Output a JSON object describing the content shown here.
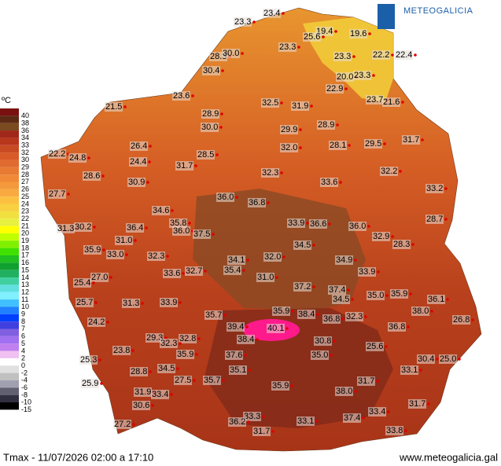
{
  "header": {
    "logo": "METEOGALICIA"
  },
  "legend": {
    "unit": "ºC",
    "items": [
      {
        "label": "40",
        "color": "#7a1010"
      },
      {
        "label": "38",
        "color": "#5c2a14"
      },
      {
        "label": "36",
        "color": "#7a4a20"
      },
      {
        "label": "34",
        "color": "#a0281a"
      },
      {
        "label": "33",
        "color": "#b8361c"
      },
      {
        "label": "32",
        "color": "#c84a22"
      },
      {
        "label": "30",
        "color": "#d85a28"
      },
      {
        "label": "29",
        "color": "#e06a30"
      },
      {
        "label": "28",
        "color": "#e87a34"
      },
      {
        "label": "27",
        "color": "#f08a38"
      },
      {
        "label": "26",
        "color": "#f49a3c"
      },
      {
        "label": "25",
        "color": "#f8aa40"
      },
      {
        "label": "24",
        "color": "#fcc040"
      },
      {
        "label": "23",
        "color": "#f8d040"
      },
      {
        "label": "22",
        "color": "#f0e040"
      },
      {
        "label": "21",
        "color": "#e8f040"
      },
      {
        "label": "20",
        "color": "#ffff00"
      },
      {
        "label": "19",
        "color": "#c0ff00"
      },
      {
        "label": "18",
        "color": "#80f000"
      },
      {
        "label": "17",
        "color": "#40e000"
      },
      {
        "label": "16",
        "color": "#20c020"
      },
      {
        "label": "15",
        "color": "#10a030"
      },
      {
        "label": "14",
        "color": "#20b060"
      },
      {
        "label": "13",
        "color": "#40d0a0"
      },
      {
        "label": "12",
        "color": "#60e0e0"
      },
      {
        "label": "11",
        "color": "#80f0ff"
      },
      {
        "label": "10",
        "color": "#40c0ff"
      },
      {
        "label": "9",
        "color": "#2080ff"
      },
      {
        "label": "8",
        "color": "#0040ff"
      },
      {
        "label": "7",
        "color": "#4040e0"
      },
      {
        "label": "6",
        "color": "#8060e0"
      },
      {
        "label": "5",
        "color": "#a070f0"
      },
      {
        "label": "4",
        "color": "#c080f0"
      },
      {
        "label": "2",
        "color": "#f0c0f0"
      },
      {
        "label": "0",
        "color": "#ffffff"
      },
      {
        "label": "-2",
        "color": "#e0e0e0"
      },
      {
        "label": "-4",
        "color": "#c0c0c0"
      },
      {
        "label": "-6",
        "color": "#a0a0b0"
      },
      {
        "label": "-8",
        "color": "#606070"
      },
      {
        "label": "-10",
        "color": "#303040"
      },
      {
        "label": "-15",
        "color": "#000000"
      }
    ]
  },
  "readings": [
    "23.4",
    "23.3",
    "19.4",
    "25.6",
    "19.6",
    "28.3",
    "30.0",
    "23.3",
    "23.3",
    "22.2",
    "22.4",
    "30.4",
    "20.0",
    "23.3",
    "22.9",
    "23.6",
    "32.5",
    "31.9",
    "23.7",
    "21.6",
    "21.5",
    "28.9",
    "30.0",
    "29.9",
    "28.9",
    "31.7",
    "26.4",
    "28.1",
    "29.5",
    "32.0",
    "28.5",
    "24.4",
    "31.7",
    "22.2",
    "24.8",
    "28.6",
    "32.2",
    "30.9",
    "32.3",
    "33.6",
    "33.2",
    "27.7",
    "36.0",
    "36.8",
    "28.7",
    "34.6",
    "35.8",
    "31.3",
    "30.2",
    "35.9",
    "36.4",
    "36.0",
    "37.5",
    "33.9",
    "36.6",
    "36.0",
    "32.9",
    "28.3",
    "31.0",
    "33.0",
    "34.5",
    "32.3",
    "32.0",
    "34.1",
    "34.9",
    "35.4",
    "33.6",
    "32.7",
    "31.0",
    "33.9",
    "27.0",
    "25.4",
    "37.2",
    "37.4",
    "34.5",
    "35.0",
    "35.9",
    "36.1",
    "25.7",
    "31.3",
    "33.9",
    "38.0",
    "24.2",
    "35.7",
    "35.9",
    "38.4",
    "36.8",
    "32.3",
    "26.8",
    "39.4",
    "40.1",
    "38.4",
    "36.8",
    "30.8",
    "32.8",
    "29.3",
    "32.3",
    "23.8",
    "35.9",
    "37.6",
    "35.0",
    "25.6",
    "30.4",
    "25.0",
    "25.3",
    "28.8",
    "34.5",
    "35.1",
    "33.1",
    "27.5",
    "35.7",
    "31.7",
    "25.9",
    "35.9",
    "31.9",
    "33.4",
    "38.0",
    "30.6",
    "31.7",
    "33.4",
    "33.3",
    "33.1",
    "37.4",
    "27.2",
    "36.2",
    "31.7",
    "33.8"
  ],
  "footer": {
    "caption": "Tmax - 11/07/2026 02:00 a 17:10",
    "url": "www.meteogalicia.gal"
  }
}
